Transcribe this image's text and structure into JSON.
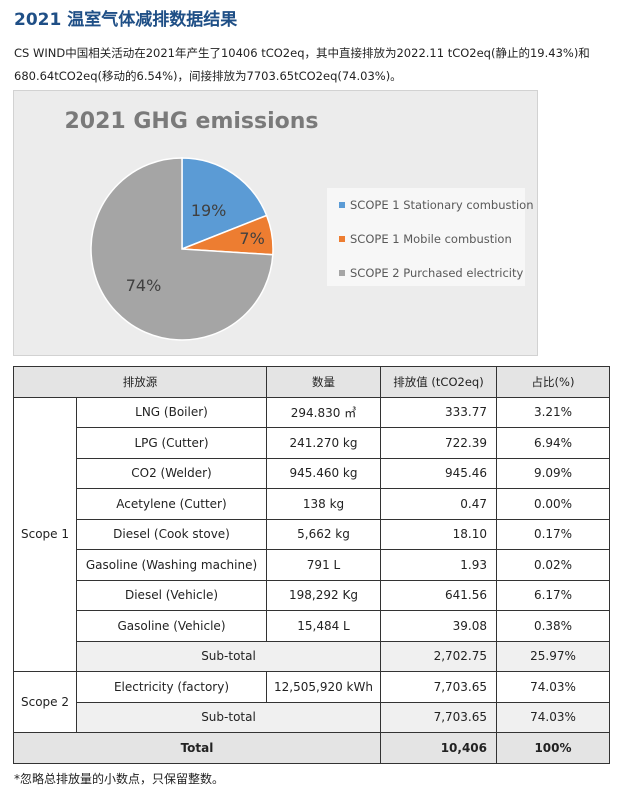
{
  "page": {
    "title": "2021 温室气体减排数据结果",
    "description": "CS WIND中国相关活动在2021年产生了10406 tCO2eq，其中直接排放为2022.11 tCO2eq(静止的19.43%)和680.64tCO2eq(移动的6.54%)，间接排放为7703.65tCO2eq(74.03%)。",
    "note": "*忽略总排放量的小数点，只保留整数。"
  },
  "chart_data": {
    "type": "pie",
    "title": "2021 GHG emissions",
    "slices": [
      {
        "label": "SCOPE 1 Stationary combustion",
        "value": 19,
        "display": "19%",
        "color": "#5b9bd5"
      },
      {
        "label": "SCOPE 1 Mobile combustion",
        "value": 7,
        "display": "7%",
        "color": "#ed7d31"
      },
      {
        "label": "SCOPE 2 Purchased electricity",
        "value": 74,
        "display": "74%",
        "color": "#a5a5a5"
      }
    ],
    "legend_position": "right"
  },
  "table": {
    "headers": [
      "排放源",
      "数量",
      "排放值 (tCO2eq)",
      "占比(%)"
    ],
    "scope1_label": "Scope 1",
    "scope1_rows": [
      {
        "source": "LNG (Boiler)",
        "qty": "294.830 ㎥",
        "value": "333.77",
        "pct": "3.21%"
      },
      {
        "source": "LPG (Cutter)",
        "qty": "241.270 kg",
        "value": "722.39",
        "pct": "6.94%"
      },
      {
        "source": "CO2 (Welder)",
        "qty": "945.460 kg",
        "value": "945.46",
        "pct": "9.09%"
      },
      {
        "source": "Acetylene (Cutter)",
        "qty": "138 kg",
        "value": "0.47",
        "pct": "0.00%"
      },
      {
        "source": "Diesel (Cook stove)",
        "qty": "5,662 kg",
        "value": "18.10",
        "pct": "0.17%"
      },
      {
        "source": "Gasoline (Washing machine)",
        "qty": "791 L",
        "value": "1.93",
        "pct": "0.02%"
      },
      {
        "source": "Diesel (Vehicle)",
        "qty": "198,292 Kg",
        "value": "641.56",
        "pct": "6.17%"
      },
      {
        "source": "Gasoline (Vehicle)",
        "qty": "15,484 L",
        "value": "39.08",
        "pct": "0.38%"
      }
    ],
    "scope1_subtotal": {
      "label": "Sub-total",
      "value": "2,702.75",
      "pct": "25.97%"
    },
    "scope2_label": "Scope 2",
    "scope2_rows": [
      {
        "source": "Electricity (factory)",
        "qty": "12,505,920 kWh",
        "value": "7,703.65",
        "pct": "74.03%"
      }
    ],
    "scope2_subtotal": {
      "label": "Sub-total",
      "value": "7,703.65",
      "pct": "74.03%"
    },
    "total": {
      "label": "Total",
      "value": "10,406",
      "pct": "100%"
    }
  }
}
